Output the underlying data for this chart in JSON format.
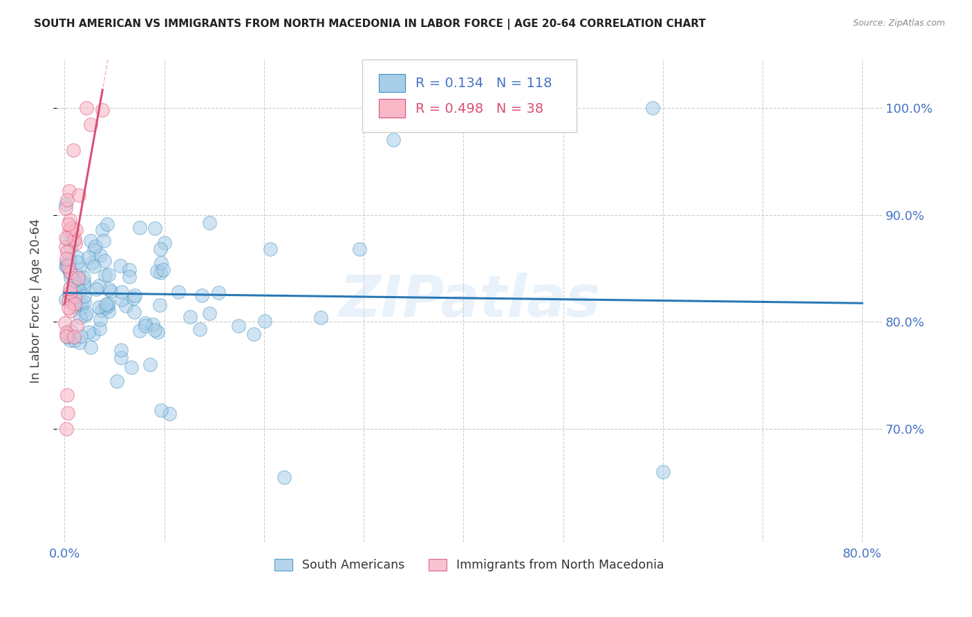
{
  "title": "SOUTH AMERICAN VS IMMIGRANTS FROM NORTH MACEDONIA IN LABOR FORCE | AGE 20-64 CORRELATION CHART",
  "source": "Source: ZipAtlas.com",
  "ylabel": "In Labor Force | Age 20-64",
  "xlim": [
    -0.008,
    0.82
  ],
  "ylim": [
    0.595,
    1.045
  ],
  "yticks": [
    0.7,
    0.8,
    0.9,
    1.0
  ],
  "ytick_labels": [
    "70.0%",
    "80.0%",
    "90.0%",
    "100.0%"
  ],
  "xtick_positions": [
    0.0,
    0.1,
    0.2,
    0.3,
    0.4,
    0.5,
    0.6,
    0.7,
    0.8
  ],
  "xtick_labels": [
    "0.0%",
    "",
    "",
    "",
    "",
    "",
    "",
    "",
    "80.0%"
  ],
  "watermark": "ZIPatlas",
  "blue_R": 0.134,
  "blue_N": 118,
  "pink_R": 0.498,
  "pink_N": 38,
  "blue_color": "#a8cde8",
  "pink_color": "#f9b8c8",
  "blue_edge_color": "#3b8fc0",
  "pink_edge_color": "#d94f75",
  "blue_line_color": "#2878b5",
  "pink_line_color": "#d94f75",
  "axis_color": "#4472C4",
  "title_color": "#222222",
  "circle_size": 200,
  "legend_label_blue": "South Americans",
  "legend_label_pink": "Immigrants from North Macedonia"
}
